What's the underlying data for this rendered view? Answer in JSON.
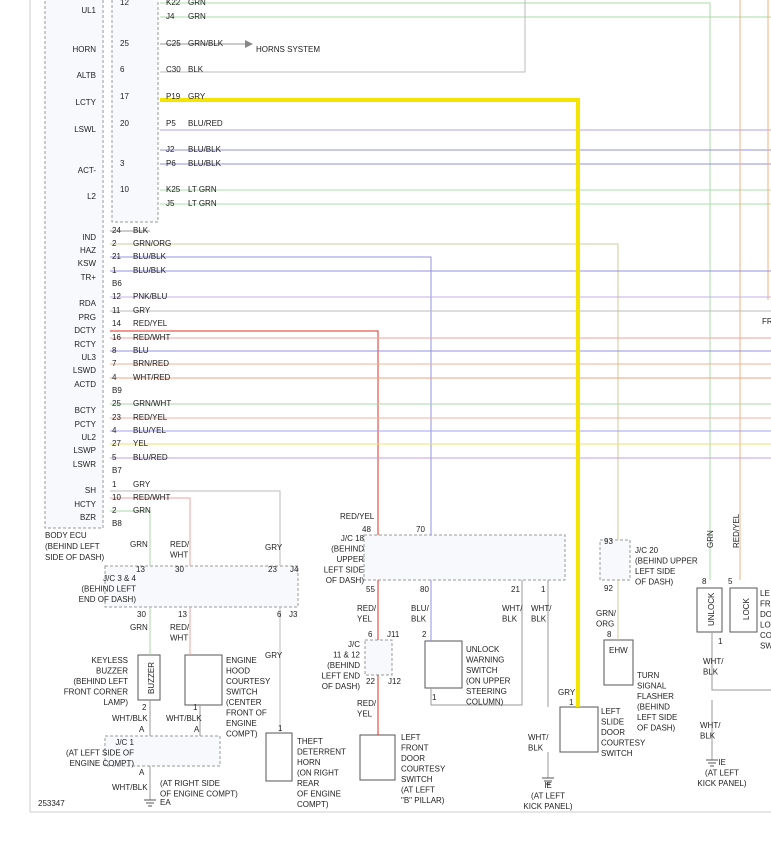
{
  "terminals": [
    "UL1",
    "HORN",
    "ALTB",
    "LCTY",
    "LSWL",
    "ACT-",
    "L2",
    "IND",
    "HAZ",
    "KSW",
    "TR+",
    "RDA",
    "PRG",
    "DCTY",
    "RCTY",
    "UL3",
    "LSWD",
    "ACTD",
    "BCTY",
    "PCTY",
    "UL2",
    "LSWP",
    "LSWR",
    "SH",
    "HCTY",
    "BZR"
  ],
  "upper": {
    "pins": [
      "12",
      "25",
      "6",
      "17",
      "20",
      "3",
      "10"
    ],
    "connectors": [
      "K22",
      "J4",
      "C25",
      "C30",
      "P19",
      "P5",
      "J2",
      "P6",
      "K25",
      "J5"
    ],
    "wires": [
      "GRN",
      "GRN",
      "GRN/BLK",
      "BLK",
      "GRY",
      "BLU/RED",
      "BLU/BLK",
      "BLU/BLK",
      "LT GRN",
      "LT GRN"
    ],
    "horns_system": "HORNS SYSTEM"
  },
  "lower": {
    "pins": [
      "24",
      "2",
      "21",
      "1",
      "B6",
      "12",
      "11",
      "14",
      "16",
      "8",
      "7",
      "4",
      "B9",
      "25",
      "23",
      "4",
      "27",
      "5",
      "B7",
      "1",
      "10",
      "2",
      "B8"
    ],
    "wires": [
      "BLK",
      "GRN/ORG",
      "BLU/BLK",
      "BLU/BLK",
      "PNK/BLU",
      "GRY",
      "RED/YEL",
      "RED/WHT",
      "BLU",
      "BRN/RED",
      "WHT/RED",
      "GRN/WHT",
      "RED/YEL",
      "BLU/YEL",
      "YEL",
      "BLU/RED",
      "GRY",
      "RED/WHT",
      "GRN"
    ]
  },
  "body_ecu": [
    "BODY ECU",
    "(BEHIND LEFT",
    "SIDE OF DASH)"
  ],
  "labels": [
    {
      "lines": [
        "GRN"
      ]
    },
    {
      "lines": [
        "RED/",
        "WHT"
      ]
    },
    {
      "lines": [
        "GRY"
      ]
    },
    {
      "lines": [
        "13"
      ]
    },
    {
      "lines": [
        "30"
      ]
    },
    {
      "lines": [
        "23"
      ]
    },
    {
      "lines": [
        "J4"
      ]
    },
    {
      "lines": [
        "J/C 3 & 4",
        "(BEHIND LEFT",
        "END OF DASH)"
      ]
    },
    {
      "lines": [
        "30"
      ]
    },
    {
      "lines": [
        "13"
      ]
    },
    {
      "lines": [
        "6"
      ]
    },
    {
      "lines": [
        "J3"
      ]
    },
    {
      "lines": [
        "GRN"
      ]
    },
    {
      "lines": [
        "RED/",
        "WHT"
      ]
    },
    {
      "lines": [
        "GRY"
      ]
    },
    {
      "lines": [
        "BUZZER"
      ]
    },
    {
      "lines": [
        "KEYLESS",
        "BUZZER",
        "(BEHIND LEFT",
        "FRONT CORNER",
        "LAMP)"
      ]
    },
    {
      "lines": [
        "ENGINE",
        "HOOD",
        "COURTESY",
        "SWITCH",
        "(CENTER",
        "FRONT OF",
        "ENGINE",
        "COMPT)"
      ]
    },
    {
      "lines": [
        "2"
      ]
    },
    {
      "lines": [
        "1"
      ]
    },
    {
      "lines": [
        "WHT/BLK"
      ]
    },
    {
      "lines": [
        "WHT/BLK"
      ]
    },
    {
      "lines": [
        "A"
      ]
    },
    {
      "lines": [
        "A"
      ]
    },
    {
      "lines": [
        "J/C 1",
        "(AT LEFT SIDE OF",
        "ENGINE COMPT)"
      ]
    },
    {
      "lines": [
        "A"
      ]
    },
    {
      "lines": [
        "WHT/BLK"
      ]
    },
    {
      "lines": [
        "(AT RIGHT SIDE",
        "OF ENGINE COMPT)"
      ]
    },
    {
      "lines": [
        "EA"
      ]
    },
    {
      "lines": [
        "1"
      ]
    },
    {
      "lines": [
        "THEFT",
        "DETERRENT",
        "HORN",
        "(ON RIGHT",
        "REAR",
        "OF ENGINE",
        "COMPT)"
      ]
    },
    {
      "lines": [
        "RED/YEL"
      ]
    },
    {
      "lines": [
        "48"
      ]
    },
    {
      "lines": [
        "70"
      ]
    },
    {
      "lines": [
        "J/C 18",
        "(BEHIND",
        "UPPER",
        "LEFT SIDE",
        "OF DASH)"
      ]
    },
    {
      "lines": [
        "55"
      ]
    },
    {
      "lines": [
        "80"
      ]
    },
    {
      "lines": [
        "21"
      ]
    },
    {
      "lines": [
        "1"
      ]
    },
    {
      "lines": [
        "RED/",
        "YEL"
      ]
    },
    {
      "lines": [
        "BLU/",
        "BLK"
      ]
    },
    {
      "lines": [
        "WHT/",
        "BLK"
      ]
    },
    {
      "lines": [
        "WHT/",
        "BLK"
      ]
    },
    {
      "lines": [
        "6"
      ]
    },
    {
      "lines": [
        "J11"
      ]
    },
    {
      "lines": [
        "J/C",
        "11 & 12",
        "(BEHIND",
        "LEFT END",
        "OF DASH)"
      ]
    },
    {
      "lines": [
        "22"
      ]
    },
    {
      "lines": [
        "J12"
      ]
    },
    {
      "lines": [
        "RED/",
        "YEL"
      ]
    },
    {
      "lines": [
        "2"
      ]
    },
    {
      "lines": [
        "UNLOCK",
        "WARNING",
        "SWITCH",
        "(ON UPPER",
        "STEERING",
        "COLUMN)"
      ]
    },
    {
      "lines": [
        "1"
      ]
    },
    {
      "lines": [
        "LEFT",
        "FRONT",
        "DOOR",
        "COURTESY",
        "SWITCH",
        "(AT LEFT",
        "\"B\" PILLAR)"
      ]
    },
    {
      "lines": [
        "93"
      ]
    },
    {
      "lines": [
        "J/C 20",
        "(BEHIND UPPER",
        "LEFT SIDE",
        "OF DASH)"
      ]
    },
    {
      "lines": [
        "92"
      ]
    },
    {
      "lines": [
        "GRN/",
        "ORG"
      ]
    },
    {
      "lines": [
        "8"
      ]
    },
    {
      "lines": [
        "EHW"
      ]
    },
    {
      "lines": [
        "TURN",
        "SIGNAL",
        "FLASHER",
        "(BEHIND",
        "LEFT SIDE",
        "OF DASH)"
      ]
    },
    {
      "lines": [
        "GRY"
      ]
    },
    {
      "lines": [
        "1"
      ]
    },
    {
      "lines": [
        "LEFT",
        "SLIDE",
        "DOOR",
        "COURTESY",
        "SWITCH"
      ]
    },
    {
      "lines": [
        "WHT/",
        "BLK"
      ]
    },
    {
      "lines": [
        "IE",
        "(AT LEFT",
        "KICK PANEL)"
      ]
    },
    {
      "lines": [
        "GRN"
      ]
    },
    {
      "lines": [
        "RED/YEL"
      ]
    },
    {
      "lines": [
        "8"
      ]
    },
    {
      "lines": [
        "5"
      ]
    },
    {
      "lines": [
        "UNLOCK"
      ]
    },
    {
      "lines": [
        "LOCK"
      ]
    },
    {
      "lines": [
        "LE",
        "FR",
        "DO",
        "LO",
        "CO",
        "SW"
      ]
    },
    {
      "lines": [
        "1"
      ]
    },
    {
      "lines": [
        "WHT/",
        "BLK"
      ]
    },
    {
      "lines": [
        "WHT/",
        "BLK"
      ]
    },
    {
      "lines": [
        "IE",
        "(AT LEFT",
        "KICK PANEL)"
      ]
    },
    {
      "lines": [
        "FR"
      ]
    }
  ],
  "figure_id": "253347"
}
